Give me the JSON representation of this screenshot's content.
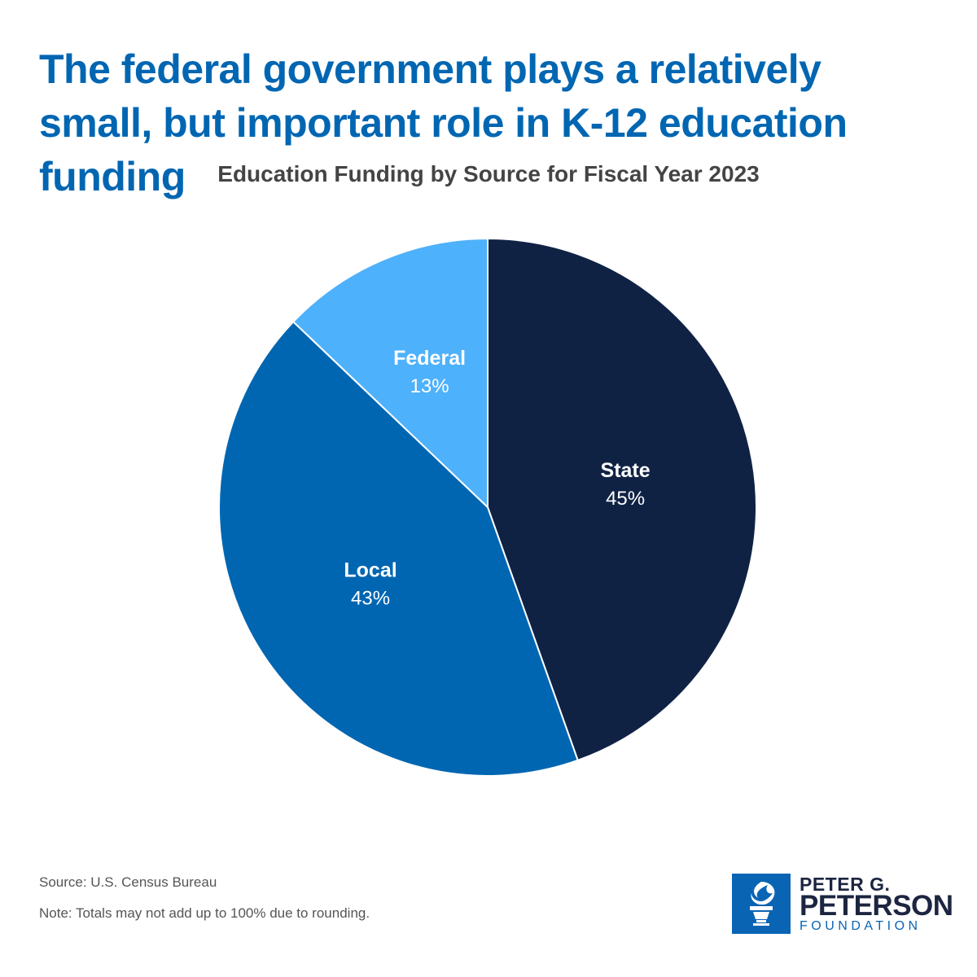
{
  "title": "The federal government plays a relatively small, but important role in K-12 education funding",
  "chart_data": {
    "type": "pie",
    "subtitle": "Education Funding by Source for Fiscal Year 2023",
    "slices": [
      {
        "label": "State",
        "value": 45,
        "value_label": "45%",
        "color": "#102244"
      },
      {
        "label": "Local",
        "value": 43,
        "value_label": "43%",
        "color": "#0066b2"
      },
      {
        "label": "Federal",
        "value": 13,
        "value_label": "13%",
        "color": "#4eb1fb"
      }
    ],
    "slice_border_color": "#ffffff",
    "legend": "none (labels on slices)"
  },
  "footer": {
    "source": "Source: U.S. Census Bureau",
    "note": "Note: Totals may not add up to 100% due to rounding."
  },
  "logo": {
    "line1": "PETER G.",
    "line2": "PETERSON",
    "line3": "FOUNDATION",
    "icon": "torch-icon",
    "color": "#0a64b4"
  }
}
